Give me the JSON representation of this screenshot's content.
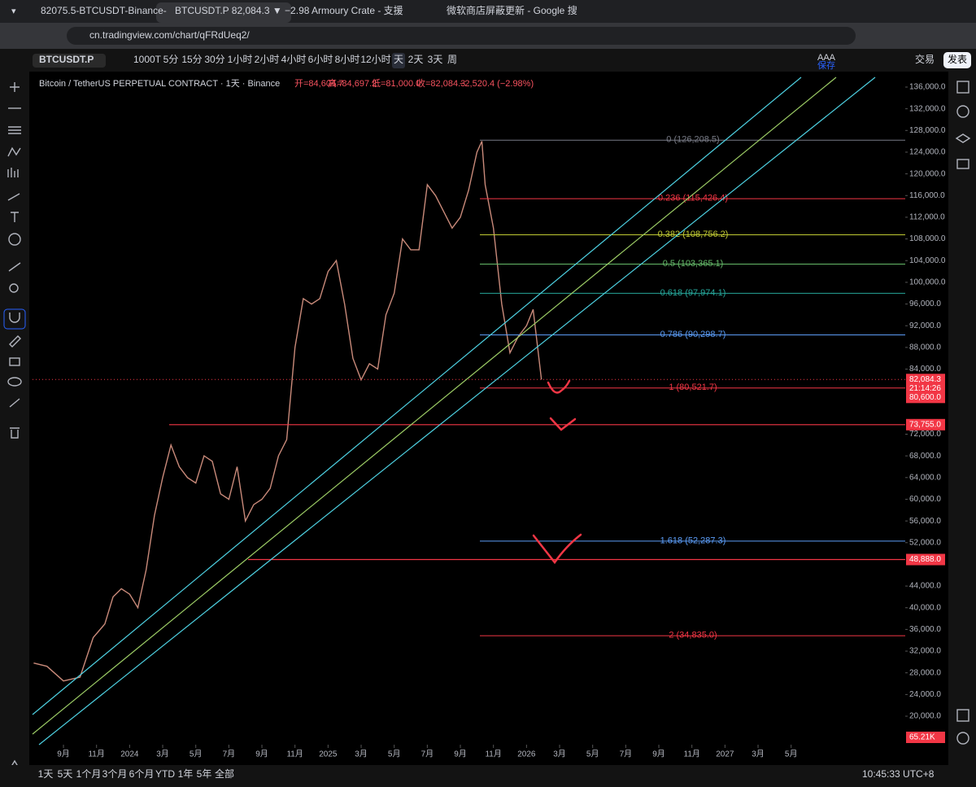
{
  "browser": {
    "tabs": [
      "82075.5-BTCUSDT-Binance-",
      "BTCUSDT.P 82,084.3 ▼ −2.98",
      "Armoury Crate - 支援",
      "微软商店屏蔽更新 - Google 搜"
    ],
    "url": "cn.tradingview.com/chart/qFRdUeq2/"
  },
  "toolbar": {
    "symbol": "BTCUSDT.P",
    "intervals": [
      "1000T",
      "5分",
      "15分",
      "30分",
      "1小时",
      "2小时",
      "4小时",
      "6小时",
      "8小时",
      "12小时",
      "天",
      "2天",
      "3天",
      "周"
    ],
    "layout": "AAA",
    "save": "保存",
    "trade": "交易",
    "publish": "发表"
  },
  "legend": {
    "title": "Bitcoin / TetherUS PERPETUAL CONTRACT · 1天 · Binance",
    "items": [
      "开=84,604.7",
      "高=84,697.2",
      "低=81,000.0",
      "收=82,084.3",
      "−2,520.4 (−2.98%)"
    ]
  },
  "chart_data": {
    "type": "line",
    "color": "#c98a7a",
    "x": [
      -1.8,
      -1,
      0,
      1,
      1.8,
      2.5,
      3,
      3.5,
      4,
      4.5,
      5,
      5.5,
      6,
      6.5,
      7,
      7.5,
      8,
      8.5,
      9,
      9.5,
      10,
      10.5,
      11,
      11.5,
      12,
      12.5,
      13,
      13.5,
      14,
      14.5,
      15,
      15.5,
      16,
      16.5,
      17,
      17.5,
      18,
      18.5,
      19,
      19.5,
      20,
      20.5,
      21,
      21.5,
      22,
      22.5,
      23,
      23.5,
      24,
      24.5,
      25,
      25.3,
      25.5,
      26,
      26.5,
      27,
      27.5,
      28,
      28.4,
      28.9
    ],
    "values": [
      29800,
      29200,
      26500,
      27200,
      34500,
      37000,
      42000,
      43500,
      42500,
      40000,
      47000,
      57000,
      64000,
      70000,
      66000,
      64000,
      63000,
      68000,
      67000,
      61000,
      60000,
      66000,
      56000,
      59000,
      60000,
      62000,
      68000,
      71000,
      88000,
      97000,
      96000,
      97000,
      102000,
      104000,
      96000,
      86000,
      82000,
      85000,
      84000,
      94000,
      98000,
      108000,
      106000,
      106000,
      118000,
      116000,
      113000,
      110000,
      112000,
      117000,
      124000,
      126000,
      118000,
      110000,
      96000,
      87000,
      90000,
      92000,
      95000,
      82084.3
    ],
    "xlim": [
      -1.87,
      50.9
    ],
    "ylim": [
      14750,
      137800
    ],
    "xticks": [
      {
        "value": 0,
        "label": "9月"
      },
      {
        "value": 2,
        "label": "11月"
      },
      {
        "value": 4,
        "label": "2024"
      },
      {
        "value": 6,
        "label": "3月"
      },
      {
        "value": 8,
        "label": "5月"
      },
      {
        "value": 10,
        "label": "7月"
      },
      {
        "value": 12,
        "label": "9月"
      },
      {
        "value": 14,
        "label": "11月"
      },
      {
        "value": 16,
        "label": "2025"
      },
      {
        "value": 18,
        "label": "3月"
      },
      {
        "value": 20,
        "label": "5月"
      },
      {
        "value": 22,
        "label": "7月"
      },
      {
        "value": 24,
        "label": "9月"
      },
      {
        "value": 26,
        "label": "11月"
      },
      {
        "value": 28,
        "label": "2026"
      },
      {
        "value": 30,
        "label": "3月"
      },
      {
        "value": 32,
        "label": "5月"
      },
      {
        "value": 34,
        "label": "7月"
      },
      {
        "value": 36,
        "label": "9月"
      },
      {
        "value": 38,
        "label": "11月"
      },
      {
        "value": 40,
        "label": "2027"
      },
      {
        "value": 42,
        "label": "3月"
      },
      {
        "value": 44,
        "label": "5月"
      }
    ],
    "yticks": [
      {
        "value": 20000,
        "label": "20,000.0"
      },
      {
        "value": 24000,
        "label": "24,000.0"
      },
      {
        "value": 28000,
        "label": "28,000.0"
      },
      {
        "value": 32000,
        "label": "32,000.0"
      },
      {
        "value": 36000,
        "label": "36,000.0"
      },
      {
        "value": 40000,
        "label": "40,000.0"
      },
      {
        "value": 44000,
        "label": "44,000.0"
      },
      {
        "value": 52000,
        "label": "52,000.0"
      },
      {
        "value": 56000,
        "label": "56,000.0"
      },
      {
        "value": 60000,
        "label": "60,000.0"
      },
      {
        "value": 64000,
        "label": "64,000.0"
      },
      {
        "value": 68000,
        "label": "68,000.0"
      },
      {
        "value": 72000,
        "label": "72,000.0"
      },
      {
        "value": 84000,
        "label": "84,000.0"
      },
      {
        "value": 88000,
        "label": "88,000.0"
      },
      {
        "value": 92000,
        "label": "92,000.0"
      },
      {
        "value": 96000,
        "label": "96,000.0"
      },
      {
        "value": 100000,
        "label": "100,000.0"
      },
      {
        "value": 104000,
        "label": "104,000.0"
      },
      {
        "value": 108000,
        "label": "108,000.0"
      },
      {
        "value": 112000,
        "label": "112,000.0"
      },
      {
        "value": 116000,
        "label": "116,000.0"
      },
      {
        "value": 120000,
        "label": "120,000.0"
      },
      {
        "value": 124000,
        "label": "124,000.0"
      },
      {
        "value": 128000,
        "label": "128,000.0"
      },
      {
        "value": 132000,
        "label": "132,000.0"
      },
      {
        "value": 136000,
        "label": "136,000.0"
      }
    ],
    "fib_levels": [
      {
        "label": "0 (126,208.5)",
        "value": 126208.5,
        "color": "#787b86"
      },
      {
        "label": "0.236 (115,426.4)",
        "value": 115426.4,
        "color": "#f23645"
      },
      {
        "label": "0.382 (108,756.2)",
        "value": 108756.2,
        "color": "#c0ca33"
      },
      {
        "label": "0.5 (103,365.1)",
        "value": 103365.1,
        "color": "#66bb6a"
      },
      {
        "label": "0.618 (97,974.1)",
        "value": 97974.1,
        "color": "#26a69a"
      },
      {
        "label": "0.786 (90,298.7)",
        "value": 90298.7,
        "color": "#5b9cf6"
      },
      {
        "label": "1 (80,521.7)",
        "value": 80521.7,
        "color": "#f23645"
      },
      {
        "label": "1.618 (52,287.3)",
        "value": 52287.3,
        "color": "#5b9cf6"
      },
      {
        "label": "2 (34,835.0)",
        "value": 34835.0,
        "color": "#f23645"
      }
    ],
    "levels": [
      {
        "value": 73755,
        "label": "73,755.0",
        "color": "#f23645"
      },
      {
        "value": 48888,
        "label": "48,888.0",
        "color": "#f23645"
      }
    ],
    "last_price": {
      "value": 82084.3,
      "label": "82,084.3"
    },
    "countdown": "21:14:26",
    "low_label": "80,600.0",
    "volume_label": "65.21K"
  },
  "range_bar": [
    "1天",
    "5天",
    "1个月",
    "3个月",
    "6个月",
    "YTD",
    "1年",
    "5年",
    "全部"
  ],
  "clock": "10:45:33 UTC+8"
}
